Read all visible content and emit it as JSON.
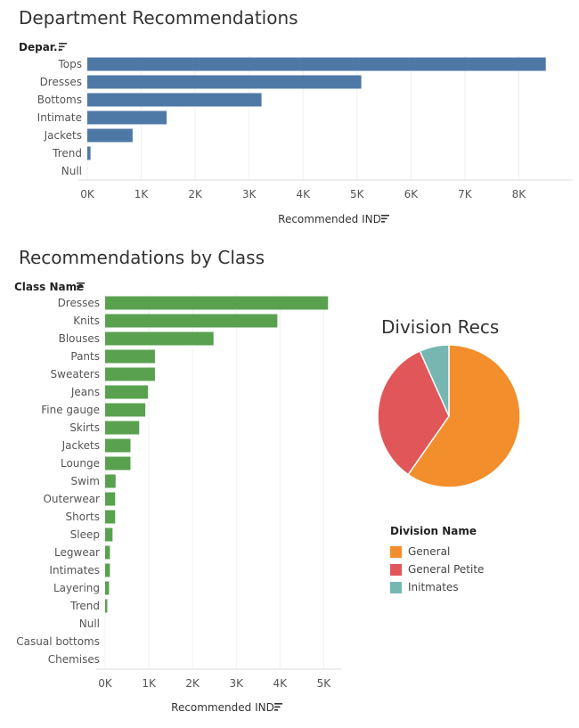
{
  "chart_data": [
    {
      "type": "bar",
      "title": "Department Recommendations",
      "header_label": "Depar..",
      "categories": [
        "Tops",
        "Dresses",
        "Bottoms",
        "Intimate",
        "Jackets",
        "Trend",
        "Null"
      ],
      "values": [
        8500,
        5080,
        3230,
        1470,
        840,
        60,
        0
      ],
      "xlabel": "Recommended IND",
      "xlim": [
        0,
        9000
      ],
      "xticks": [
        "0K",
        "1K",
        "2K",
        "3K",
        "4K",
        "5K",
        "6K",
        "7K",
        "8K"
      ],
      "color": "#4e79a7"
    },
    {
      "type": "bar",
      "title": "Recommendations by Class",
      "header_label": "Class Name",
      "categories": [
        "Dresses",
        "Knits",
        "Blouses",
        "Pants",
        "Sweaters",
        "Jeans",
        "Fine gauge",
        "Skirts",
        "Jackets",
        "Lounge",
        "Swim",
        "Outerwear",
        "Shorts",
        "Sleep",
        "Legwear",
        "Intimates",
        "Layering",
        "Trend",
        "Null",
        "Casual bottoms",
        "Chemises"
      ],
      "values": [
        5100,
        3940,
        2480,
        1140,
        1140,
        980,
        920,
        780,
        580,
        580,
        240,
        230,
        230,
        170,
        110,
        110,
        90,
        50,
        0,
        0,
        0
      ],
      "xlabel": "Recommended IND",
      "xlim": [
        0,
        5400
      ],
      "xticks": [
        "0K",
        "1K",
        "2K",
        "3K",
        "4K",
        "5K"
      ],
      "color": "#59a14f"
    },
    {
      "type": "pie",
      "title": "Division Recs",
      "legend_title": "Division Name",
      "labels": [
        "General",
        "General Petite",
        "Initmates"
      ],
      "values": [
        0.597,
        0.336,
        0.067
      ],
      "colors": [
        "#f28e2b",
        "#e15759",
        "#76b7b2"
      ]
    }
  ]
}
